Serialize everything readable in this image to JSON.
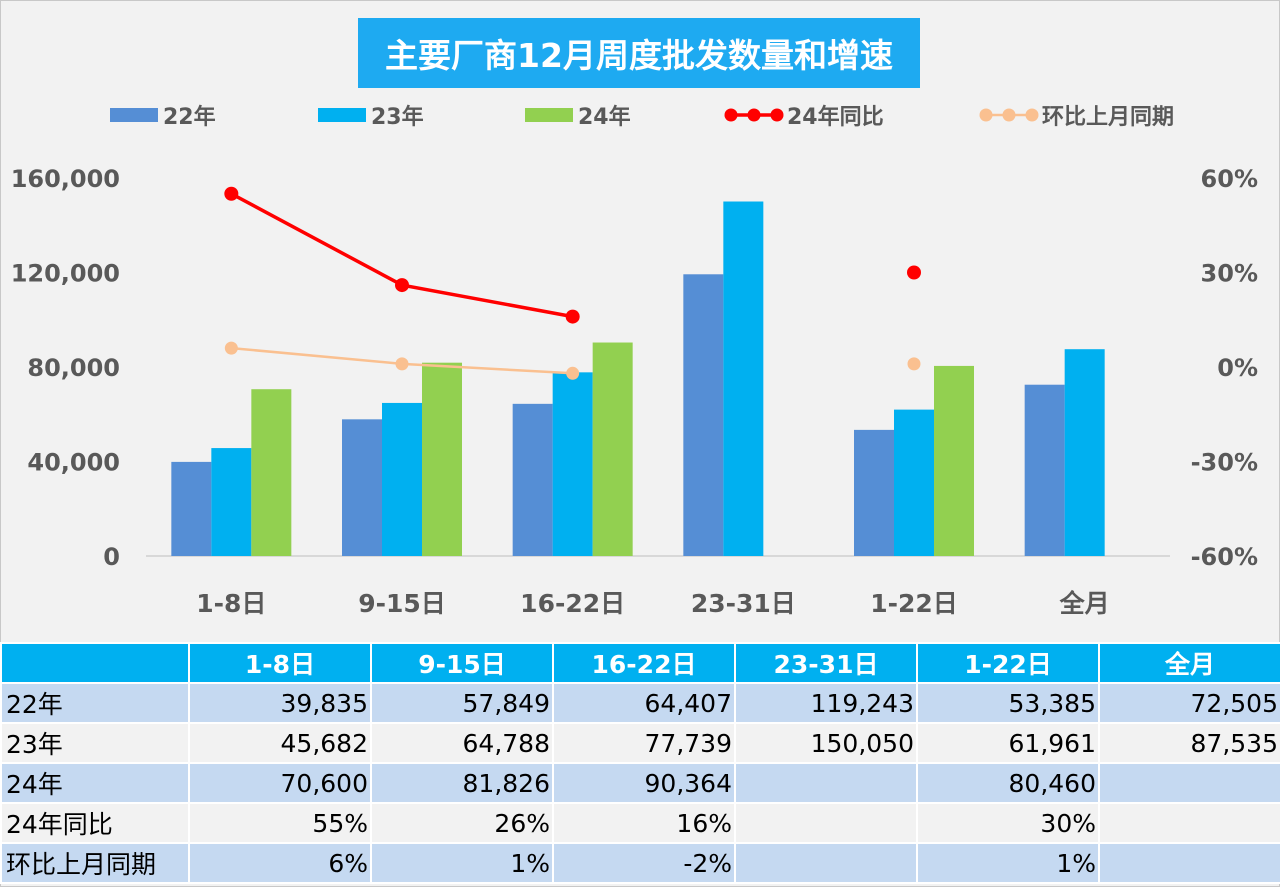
{
  "colors": {
    "s22": "#558ed5",
    "s23": "#00b0f0",
    "s24": "#92d050",
    "yoy": "#ff0000",
    "mom": "#fac090",
    "title_bg": "#1eaaf1",
    "table_header": "#00b0f0",
    "table_band": "#c5d9f1"
  },
  "chart_data": {
    "type": "bar",
    "title": "主要厂商12月周度批发数量和增速",
    "categories": [
      "1-8日",
      "9-15日",
      "16-22日",
      "23-31日",
      "1-22日",
      "全月"
    ],
    "series": [
      {
        "name": "22年",
        "kind": "bar",
        "axis": "left",
        "values": [
          39835,
          57849,
          64407,
          119243,
          53385,
          72505
        ]
      },
      {
        "name": "23年",
        "kind": "bar",
        "axis": "left",
        "values": [
          45682,
          64788,
          77739,
          150050,
          61961,
          87535
        ]
      },
      {
        "name": "24年",
        "kind": "bar",
        "axis": "left",
        "values": [
          70600,
          81826,
          90364,
          null,
          80460,
          null
        ]
      },
      {
        "name": "24年同比",
        "kind": "line",
        "axis": "right",
        "values": [
          55,
          26,
          16,
          null,
          30,
          null
        ]
      },
      {
        "name": "环比上月同期",
        "kind": "line",
        "axis": "right",
        "values": [
          6,
          1,
          -2,
          null,
          1,
          null
        ]
      }
    ],
    "y_left": {
      "min": 0,
      "max": 160000,
      "ticks": [
        "0",
        "40,000",
        "80,000",
        "120,000",
        "160,000"
      ]
    },
    "y_right": {
      "min": -60,
      "max": 60,
      "unit": "%",
      "ticks": [
        "-60%",
        "-30%",
        "0%",
        "30%",
        "60%"
      ]
    },
    "legend_placement": "top",
    "grid": false
  },
  "table": {
    "headers": [
      "",
      "1-8日",
      "9-15日",
      "16-22日",
      "23-31日",
      "1-22日",
      "全月"
    ],
    "rows": [
      {
        "label": "22年",
        "cells": [
          "39,835",
          "57,849",
          "64,407",
          "119,243",
          "53,385",
          "72,505"
        ]
      },
      {
        "label": "23年",
        "cells": [
          "45,682",
          "64,788",
          "77,739",
          "150,050",
          "61,961",
          "87,535"
        ]
      },
      {
        "label": "24年",
        "cells": [
          "70,600",
          "81,826",
          "90,364",
          "",
          "80,460",
          ""
        ]
      },
      {
        "label": "24年同比",
        "cells": [
          "55%",
          "26%",
          "16%",
          "",
          "30%",
          ""
        ]
      },
      {
        "label": "环比上月同期",
        "cells": [
          "6%",
          "1%",
          "-2%",
          "",
          "1%",
          ""
        ]
      }
    ]
  }
}
